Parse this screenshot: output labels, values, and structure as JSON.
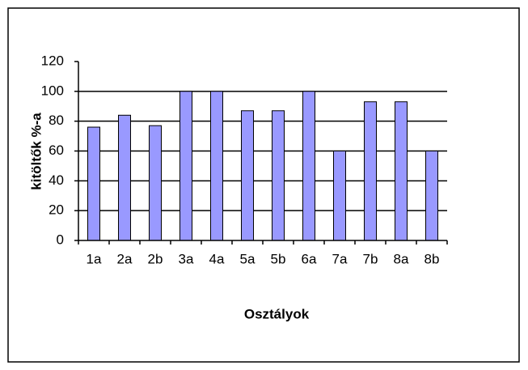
{
  "chart_data": {
    "type": "bar",
    "xlabel": "Osztályok",
    "ylabel": "kitöltők %-a",
    "categories": [
      "1a",
      "2a",
      "2b",
      "3a",
      "4a",
      "5a",
      "5b",
      "6a",
      "7a",
      "7b",
      "8a",
      "8b"
    ],
    "values": [
      76,
      84,
      77,
      100,
      100,
      87,
      87,
      100,
      60,
      93,
      93,
      60
    ],
    "color": "#9999ff",
    "ylim": [
      0,
      120
    ],
    "yticks": [
      0,
      20,
      40,
      60,
      80,
      100,
      120
    ],
    "grid": true
  }
}
